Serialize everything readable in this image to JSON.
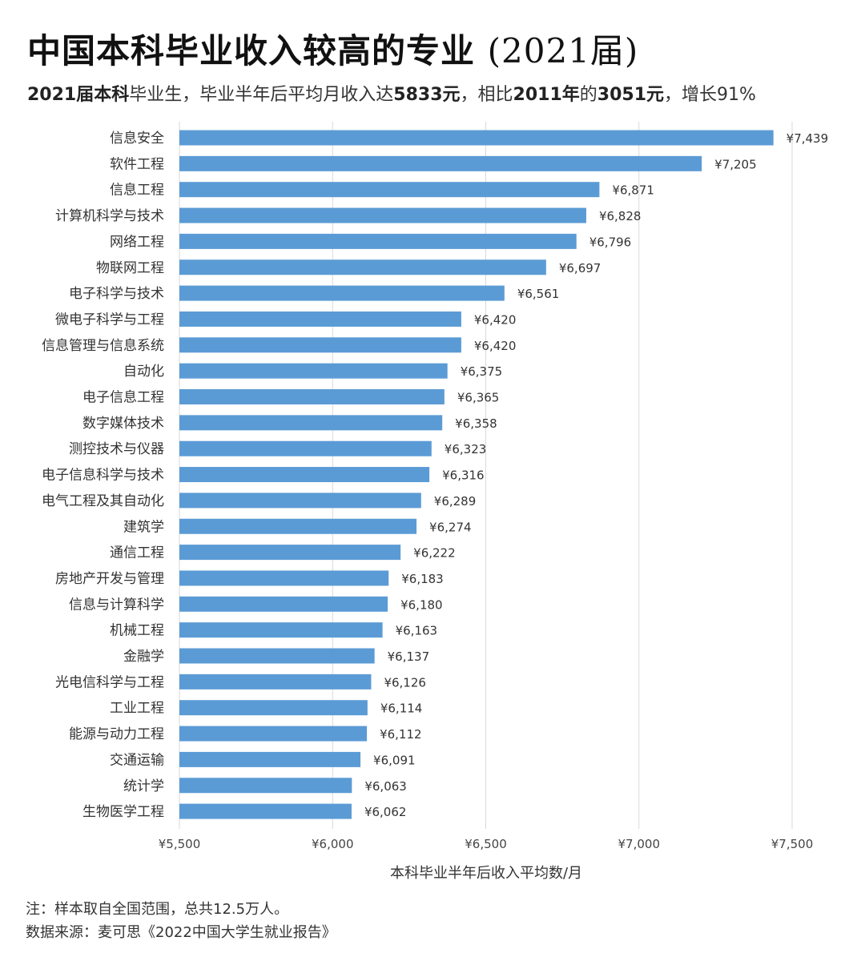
{
  "header": {
    "title_main": "中国本科毕业收入较高的专业",
    "title_year": "(2021届)",
    "subtitle": {
      "p1": "2021届",
      "p2": "本科",
      "p3": "毕业生，毕业半年后平均月收入达",
      "p4": "5833元",
      "p5": "，相比",
      "p6": "2011年",
      "p7": "的",
      "p8": "3051元",
      "p9": "，增长91%"
    }
  },
  "chart_data": {
    "type": "bar",
    "orientation": "horizontal",
    "categories": [
      "信息安全",
      "软件工程",
      "信息工程",
      "计算机科学与技术",
      "网络工程",
      "物联网工程",
      "电子科学与技术",
      "微电子科学与工程",
      "信息管理与信息系统",
      "自动化",
      "电子信息工程",
      "数字媒体技术",
      "测控技术与仪器",
      "电子信息科学与技术",
      "电气工程及其自动化",
      "建筑学",
      "通信工程",
      "房地产开发与管理",
      "信息与计算科学",
      "机械工程",
      "金融学",
      "光电信科学与工程",
      "工业工程",
      "能源与动力工程",
      "交通运输",
      "统计学",
      "生物医学工程"
    ],
    "values": [
      7439,
      7205,
      6871,
      6828,
      6796,
      6697,
      6561,
      6420,
      6420,
      6375,
      6365,
      6358,
      6323,
      6316,
      6289,
      6274,
      6222,
      6183,
      6180,
      6163,
      6137,
      6126,
      6114,
      6112,
      6091,
      6063,
      6062
    ],
    "value_labels": [
      "¥7,439",
      "¥7,205",
      "¥6,871",
      "¥6,828",
      "¥6,796",
      "¥6,697",
      "¥6,561",
      "¥6,420",
      "¥6,420",
      "¥6,375",
      "¥6,365",
      "¥6,358",
      "¥6,323",
      "¥6,316",
      "¥6,289",
      "¥6,274",
      "¥6,222",
      "¥6,183",
      "¥6,180",
      "¥6,163",
      "¥6,137",
      "¥6,126",
      "¥6,114",
      "¥6,112",
      "¥6,091",
      "¥6,063",
      "¥6,062"
    ],
    "xlim": [
      5500,
      7500
    ],
    "xticks": [
      5500,
      6000,
      6500,
      7000,
      7500
    ],
    "xtick_labels": [
      "¥5,500",
      "¥6,000",
      "¥6,500",
      "¥7,000",
      "¥7,500"
    ],
    "xlabel": "本科毕业半年后收入平均数/月",
    "grid": "vertical",
    "bar_color": "#5b9bd5",
    "grid_color": "#d9d9d9"
  },
  "footer": {
    "note": "注：样本取自全国范围，总共12.5万人。",
    "source": "数据来源：麦可思《2022中国大学生就业报告》"
  }
}
